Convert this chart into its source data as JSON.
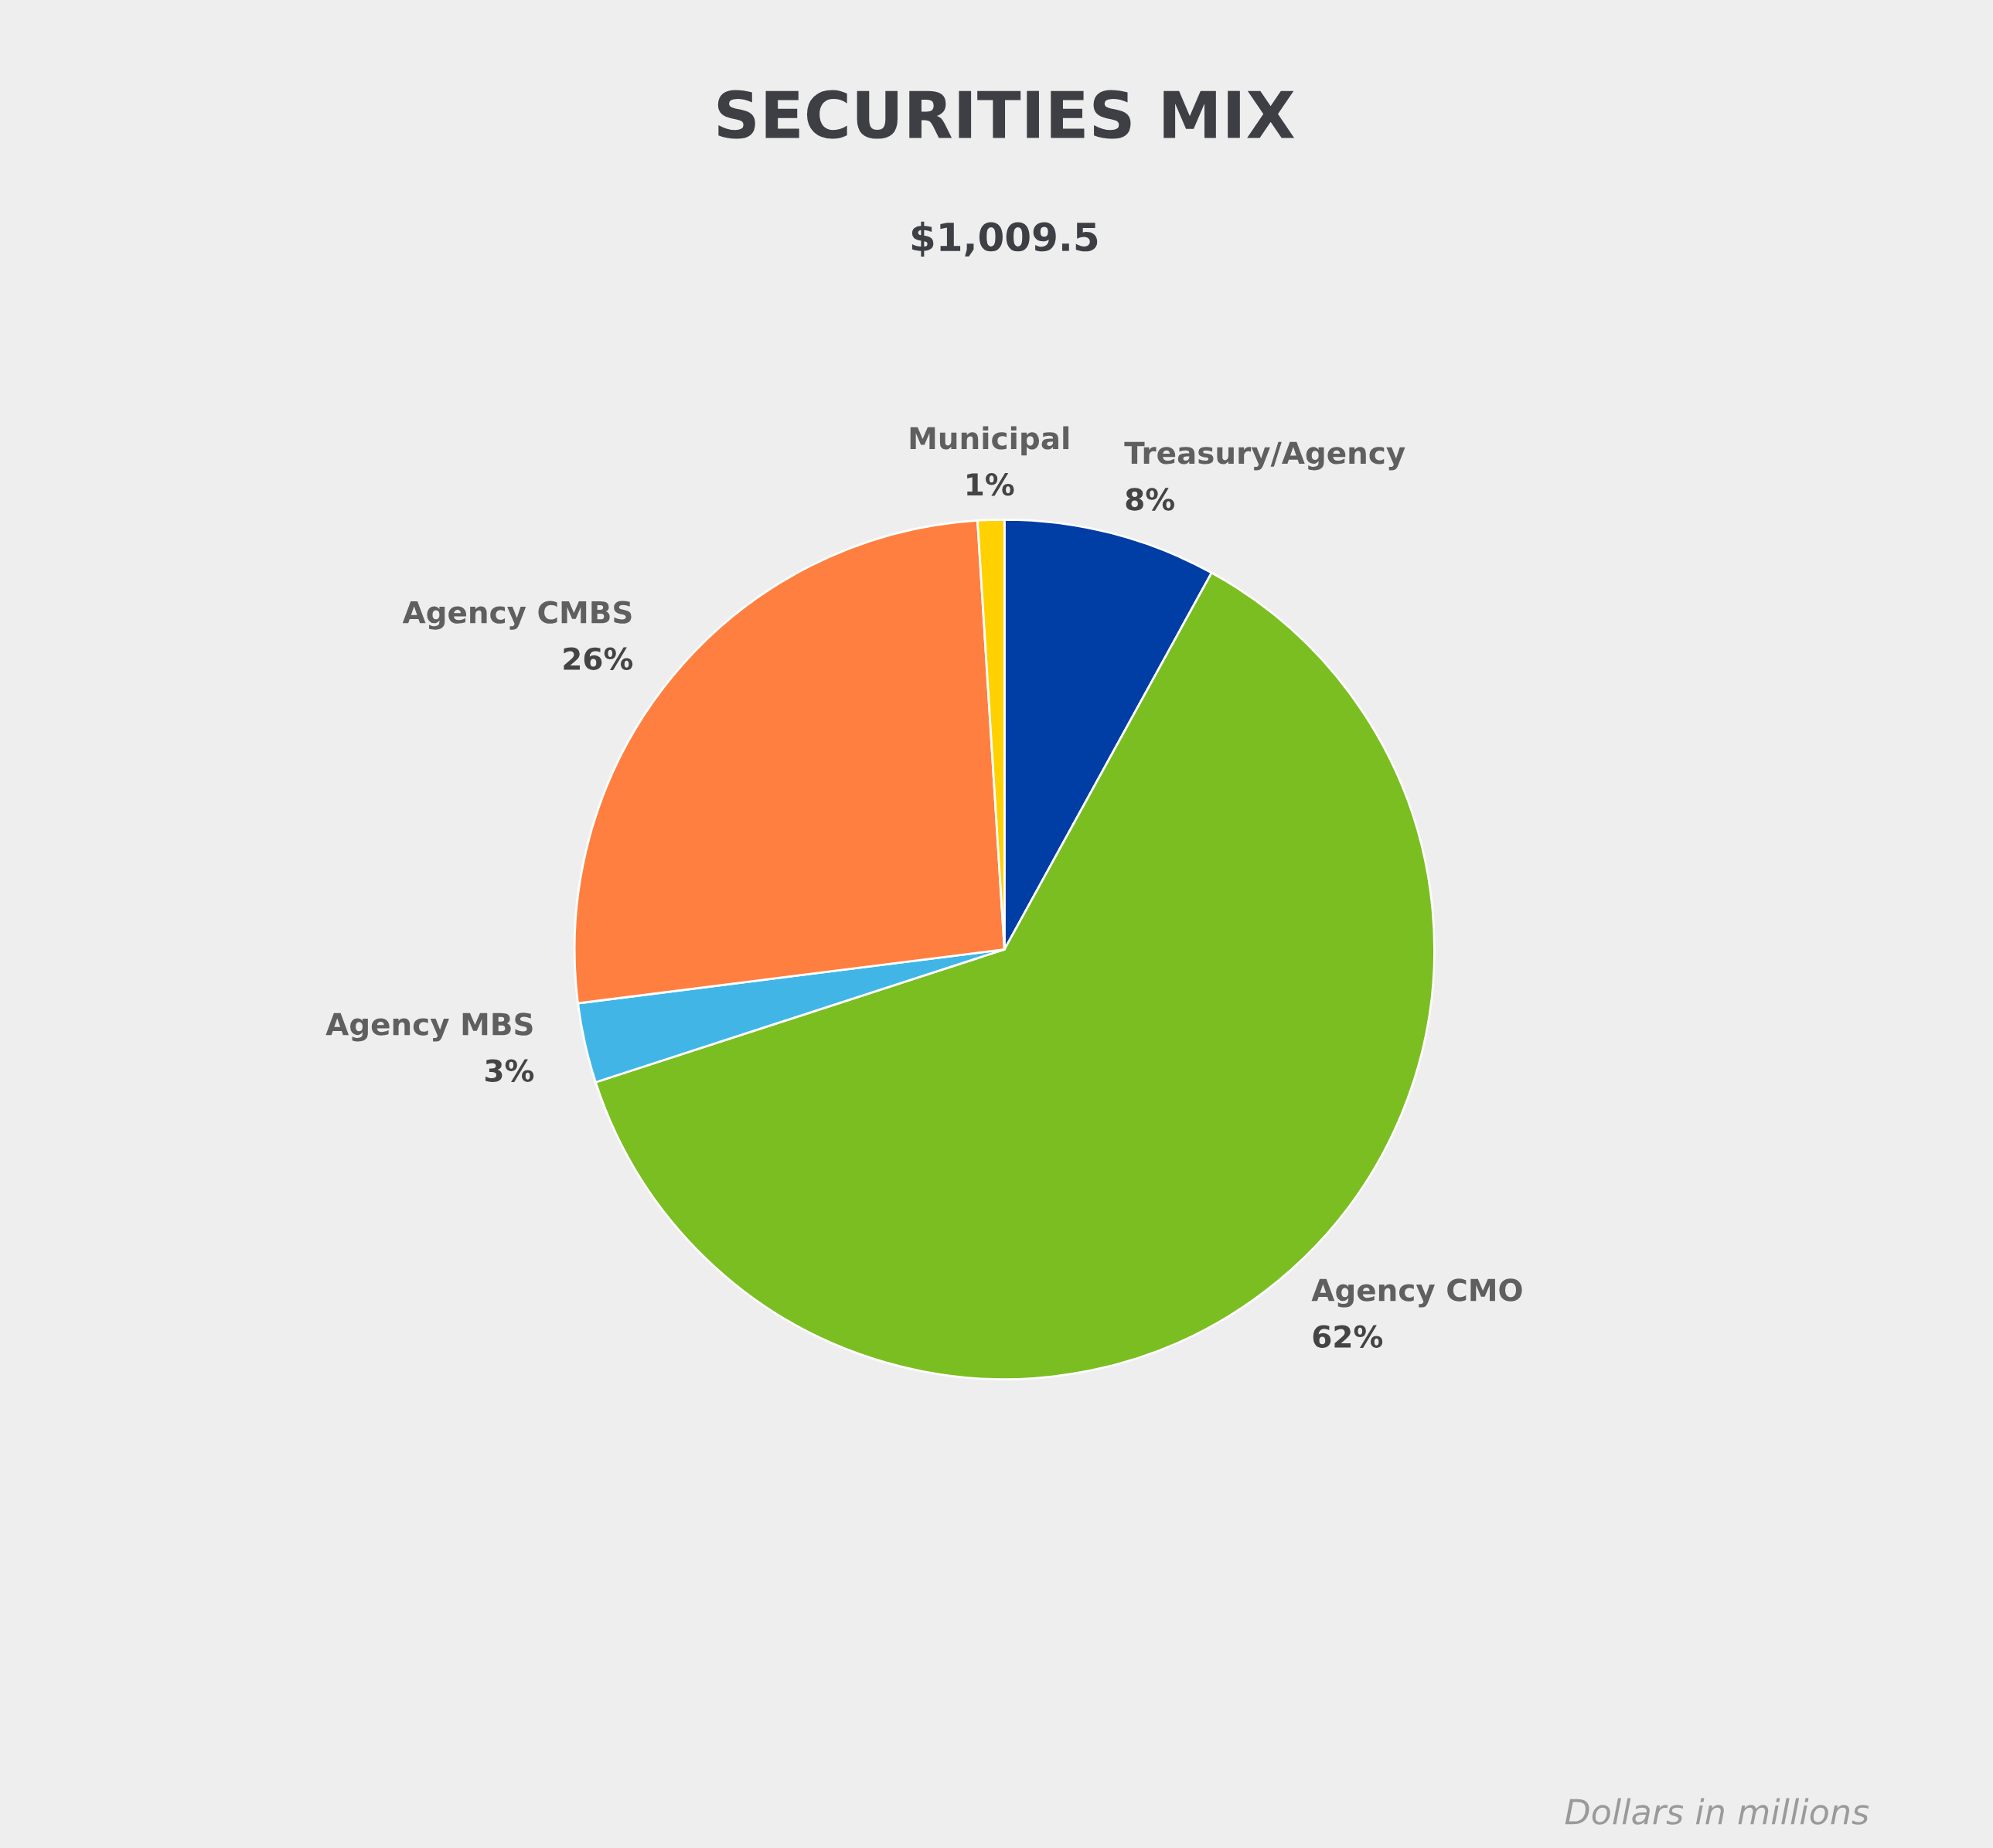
{
  "chart_data": {
    "type": "pie",
    "title": "SECURITIES MIX",
    "subtitle": "$1,009.5",
    "categories": [
      "Treasury/Agency",
      "Agency CMO",
      "Agency MBS",
      "Agency CMBS",
      "Municipal"
    ],
    "values": [
      8,
      62,
      3,
      26,
      1
    ],
    "colors": [
      "#003da5",
      "#7bbe21",
      "#41b6e6",
      "#ff7f41",
      "#ffd100"
    ],
    "value_labels": [
      "8%",
      "62%",
      "3%",
      "26%",
      "1%"
    ],
    "annotations": [
      "Dollars in millions"
    ],
    "legend": false
  }
}
